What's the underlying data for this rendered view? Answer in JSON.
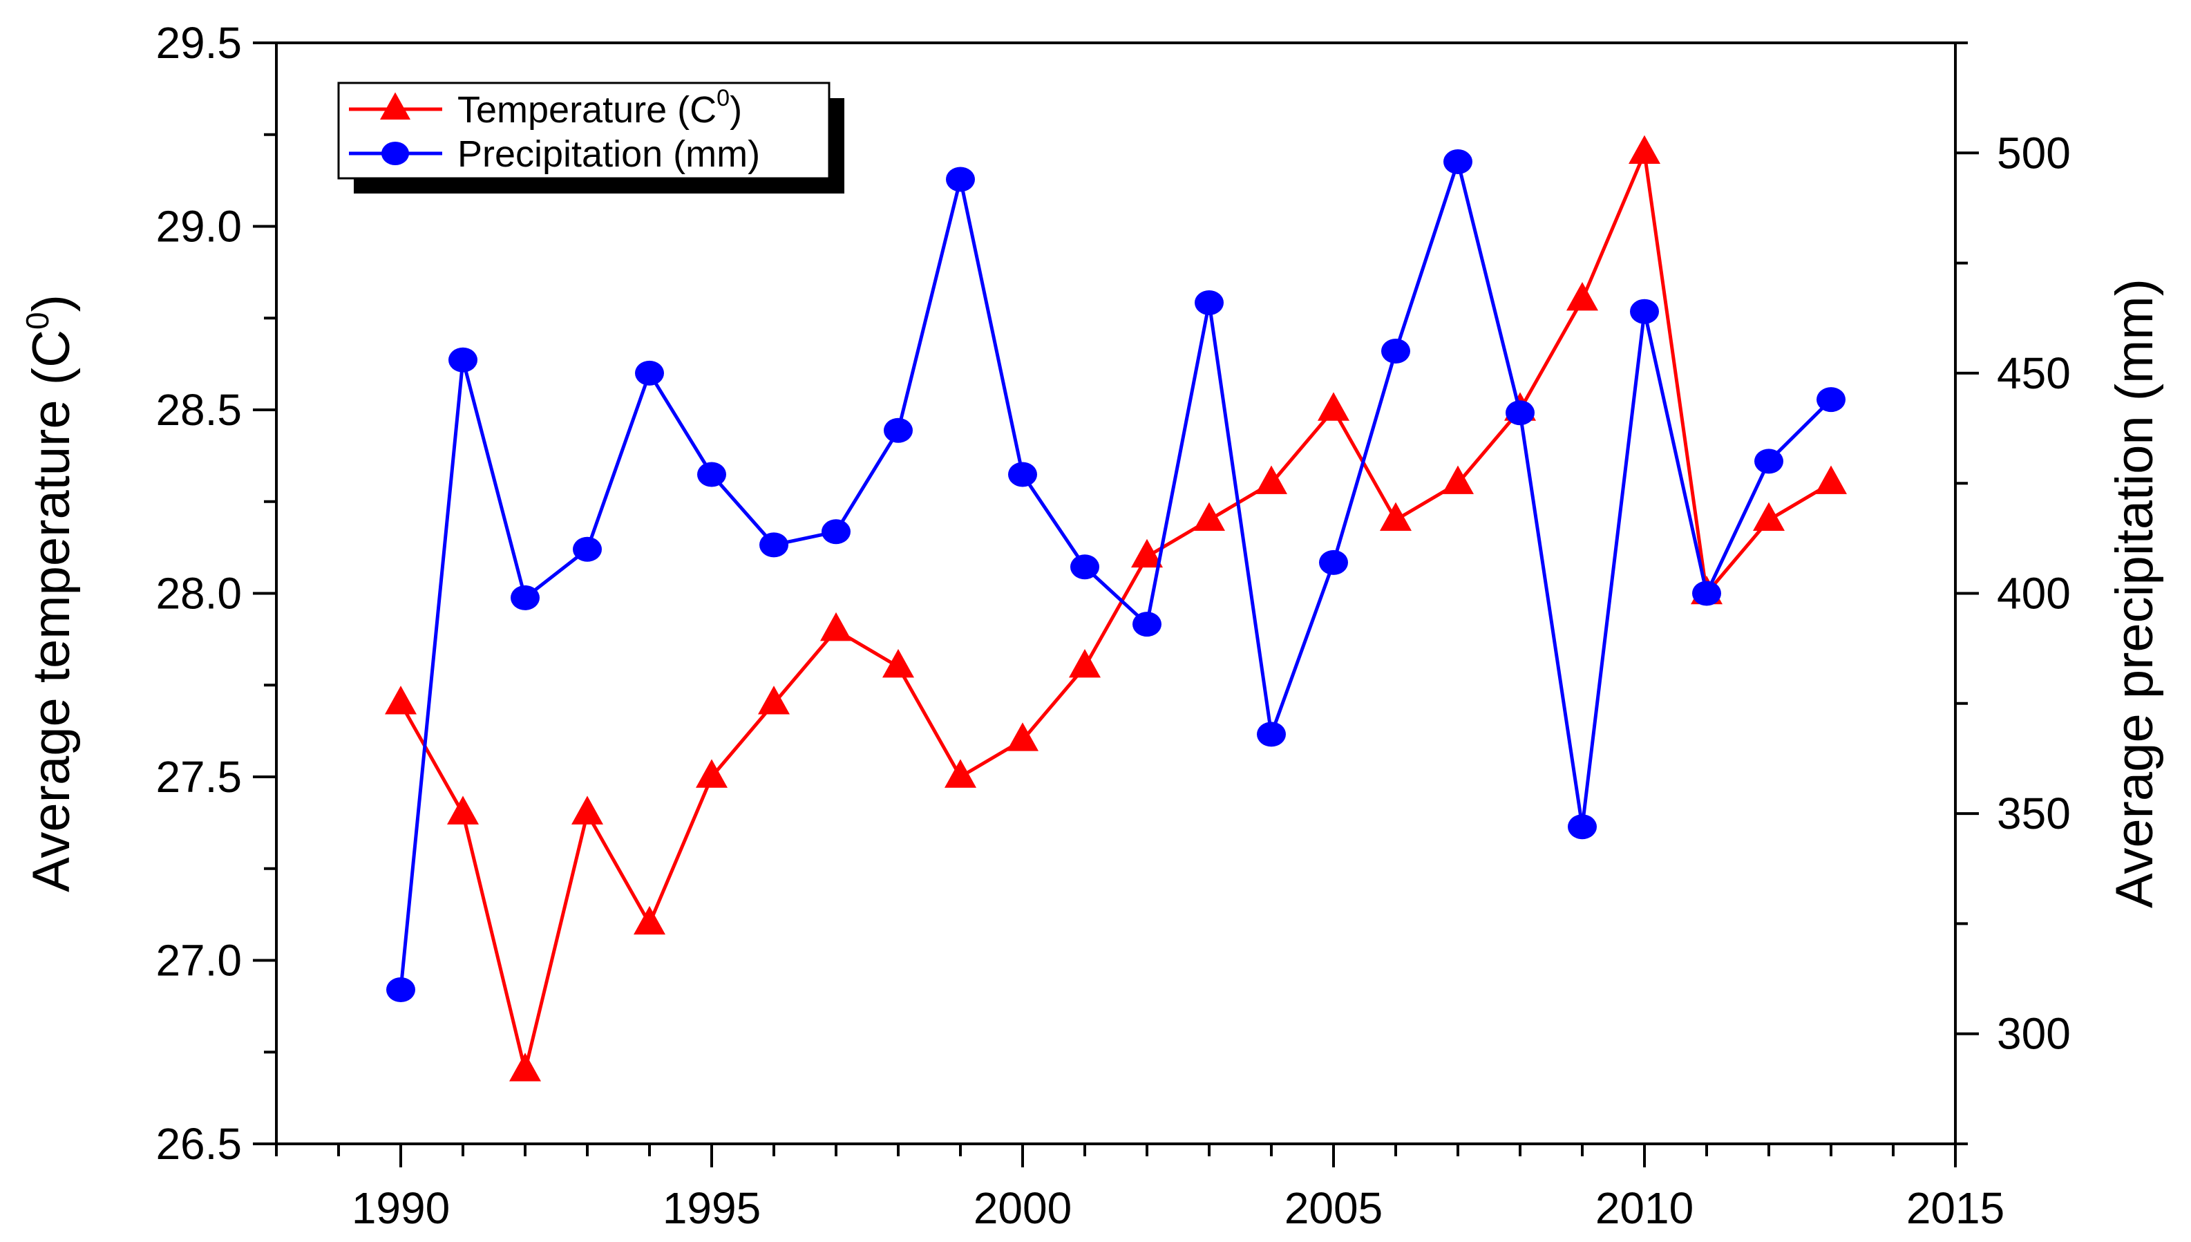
{
  "chart_data": {
    "type": "line",
    "title": "",
    "xlabel": "",
    "ylabel_left": "Average temperature (C0)",
    "ylabel_right": "Average precipitation (mm)",
    "xlim": [
      1988,
      2015
    ],
    "ylim_left": [
      26.5,
      29.5
    ],
    "ylim_right": [
      275,
      525
    ],
    "x_ticks": [
      1990,
      1995,
      2000,
      2005,
      2010,
      2015
    ],
    "x_tick_labels": [
      "1990",
      "1995",
      "2000",
      "2005",
      "2010",
      "2015"
    ],
    "y_left_ticks": [
      26.5,
      27.0,
      27.5,
      28.0,
      28.5,
      29.0,
      29.5
    ],
    "y_left_tick_labels": [
      "26.5",
      "27.0",
      "27.5",
      "28.0",
      "28.5",
      "29.0",
      "29.5"
    ],
    "y_right_ticks": [
      300,
      350,
      400,
      450,
      500
    ],
    "y_right_tick_labels": [
      "300",
      "350",
      "400",
      "450",
      "500"
    ],
    "grid": false,
    "legend_position": "top-left",
    "x": [
      1990,
      1991,
      1992,
      1993,
      1994,
      1995,
      1996,
      1997,
      1998,
      1999,
      2000,
      2001,
      2002,
      2003,
      2004,
      2005,
      2006,
      2007,
      2008,
      2009,
      2010,
      2011,
      2012,
      2013
    ],
    "series": [
      {
        "name": "Temperature",
        "label": "Temperature (C",
        "label_sup": "0",
        "label_end": ")",
        "axis": "left",
        "marker": "triangle",
        "color": "#ff0000",
        "values": [
          27.7,
          27.4,
          26.7,
          27.4,
          27.1,
          27.5,
          27.7,
          27.9,
          27.8,
          27.5,
          27.6,
          27.8,
          28.1,
          28.2,
          28.3,
          28.5,
          28.2,
          28.3,
          28.5,
          28.8,
          29.2,
          28.0,
          28.2,
          28.3
        ]
      },
      {
        "name": "Precipitation",
        "label": "Precipitation (mm)",
        "axis": "right",
        "marker": "circle",
        "color": "#0000ff",
        "values": [
          310,
          453,
          399,
          410,
          450,
          427,
          411,
          414,
          437,
          494,
          427,
          406,
          393,
          466,
          368,
          407,
          455,
          498,
          441,
          347,
          464,
          400,
          430,
          444
        ]
      }
    ],
    "ylabel_left_parts": {
      "main": "Average temperature (C",
      "sup": "0",
      "end": ")"
    }
  }
}
